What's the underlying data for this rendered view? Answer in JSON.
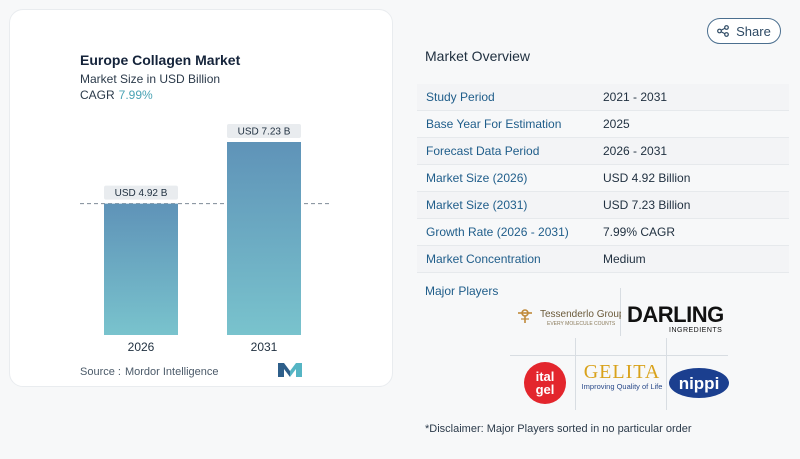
{
  "chart": {
    "title": "Europe Collagen Market",
    "subtitle": "Market Size in USD Billion",
    "cagr_label": "CAGR",
    "cagr_value": "7.99%",
    "source_label": "Source :",
    "source_value": "Mordor Intelligence"
  },
  "chart_data": {
    "type": "bar",
    "categories": [
      "2026",
      "2031"
    ],
    "values": [
      4.92,
      7.23
    ],
    "data_labels": [
      "USD 4.92 B",
      "USD 7.23 B"
    ],
    "title": "Europe Collagen Market",
    "subtitle": "Market Size in USD Billion",
    "ylim": [
      0,
      7.23
    ]
  },
  "share": {
    "label": "Share",
    "icon": "share-icon"
  },
  "overview": {
    "title": "Market Overview",
    "rows": [
      {
        "key": "Study Period",
        "value": "2021 - 2031"
      },
      {
        "key": "Base Year For Estimation",
        "value": "2025"
      },
      {
        "key": "Forecast Data Period",
        "value": "2026 - 2031"
      },
      {
        "key": "Market Size (2026)",
        "value": "USD 4.92 Billion"
      },
      {
        "key": "Market Size (2031)",
        "value": "USD 7.23 Billion"
      },
      {
        "key": "Growth Rate (2026 - 2031)",
        "value": "7.99% CAGR"
      },
      {
        "key": "Market Concentration",
        "value": "Medium"
      }
    ]
  },
  "players": {
    "title": "Major Players",
    "logos": {
      "tessenderlo": {
        "name": "Tessenderlo Group",
        "tagline": "EVERY MOLECULE COUNTS"
      },
      "darling": {
        "name": "DARLING",
        "tagline": "INGREDIENTS"
      },
      "italgel": {
        "line1": "ital",
        "line2": "gel"
      },
      "gelita": {
        "name": "GELITA",
        "tagline": "Improving Quality of Life"
      },
      "nippi": {
        "name": "nippi"
      }
    }
  },
  "disclaimer": "*Disclaimer: Major Players sorted in no particular order",
  "colors": {
    "bar_top": "#5f93b8",
    "bar_bottom": "#79c3cd",
    "accent": "#1f5d8a",
    "cagr": "#4aa3b4"
  }
}
